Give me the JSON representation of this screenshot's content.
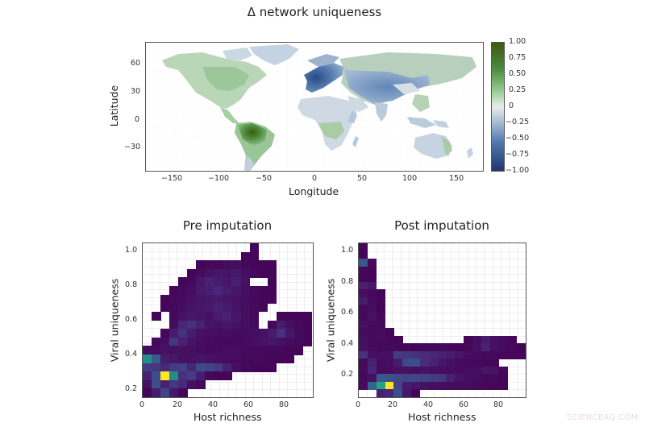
{
  "chart_data": [
    {
      "type": "heatmap",
      "subtype": "world map raster",
      "title": "Δ network uniqueness",
      "xlabel": "Longitude",
      "ylabel": "Latitude",
      "xlim": [
        -180,
        180
      ],
      "ylim": [
        -58,
        84
      ],
      "xticks": [
        -150,
        -100,
        -50,
        0,
        50,
        100,
        150
      ],
      "yticks": [
        -30,
        0,
        30,
        60
      ],
      "colorbar": {
        "range": [
          -1.0,
          1.0
        ],
        "ticks": [
          "1.00",
          "0.75",
          "0.50",
          "0.25",
          "0",
          "−0.25",
          "−0.50",
          "−0.75",
          "−1.00"
        ],
        "colormap": "diverging blue-white-green",
        "colors": {
          "low": "#1f1f5a",
          "mid_low": "#4f78ad",
          "zero": "#e8eaee",
          "mid_high": "#5fa35a",
          "high": "#3d5a10"
        }
      },
      "regions": [
        {
          "name": "Amazon basin",
          "approx_value": 0.9
        },
        {
          "name": "Central America / northern South America",
          "approx_value": 0.6
        },
        {
          "name": "North America (Canada/US)",
          "approx_value": 0.3
        },
        {
          "name": "Central Africa",
          "approx_value": 0.3
        },
        {
          "name": "Eastern Australia",
          "approx_value": 0.35
        },
        {
          "name": "Europe / Mediterranean",
          "approx_value": -0.7
        },
        {
          "name": "Central Asia / Himalaya",
          "approx_value": -0.5
        },
        {
          "name": "Siberia",
          "approx_value": 0.2
        },
        {
          "name": "Greenland",
          "approx_value": -0.2
        },
        {
          "name": "Sahara / North Africa",
          "approx_value": -0.15
        },
        {
          "name": "Southeast Asia",
          "approx_value": -0.2
        },
        {
          "name": "Australia interior",
          "approx_value": -0.15
        },
        {
          "name": "Southern South America",
          "approx_value": -0.15
        }
      ]
    },
    {
      "type": "heatmap",
      "subtype": "2D histogram",
      "title": "Pre imputation",
      "xlabel": "Host richness",
      "ylabel": "Viral uniqueness",
      "xlim": [
        0,
        95
      ],
      "ylim": [
        0.15,
        1.05
      ],
      "xticks": [
        0,
        20,
        40,
        60,
        80
      ],
      "yticks": [
        "0.2",
        "0.4",
        "0.6",
        "0.8",
        "1.0"
      ],
      "bin_width_x": 5,
      "bin_height_y": 0.05,
      "rows_top_to_bottom": 18,
      "cols": 19,
      "colormap": "viridis",
      "note": "grid values are relative density 0-1; -1 = empty",
      "grid": [
        [
          -1,
          -1,
          -1,
          -1,
          -1,
          -1,
          -1,
          -1,
          -1,
          -1,
          -1,
          -1,
          0.02,
          -1,
          -1,
          -1,
          -1,
          -1,
          -1
        ],
        [
          -1,
          -1,
          -1,
          -1,
          -1,
          -1,
          -1,
          -1,
          -1,
          -1,
          -1,
          0.02,
          0.02,
          -1,
          -1,
          -1,
          -1,
          -1,
          -1
        ],
        [
          -1,
          -1,
          -1,
          -1,
          -1,
          -1,
          0.02,
          0.03,
          0.03,
          0.04,
          0.05,
          0.03,
          0.02,
          0.02,
          0.02,
          -1,
          -1,
          -1,
          -1
        ],
        [
          -1,
          -1,
          -1,
          -1,
          -1,
          0.02,
          0.04,
          0.06,
          0.08,
          0.07,
          0.09,
          0.05,
          0.03,
          0.02,
          0.02,
          -1,
          -1,
          -1,
          -1
        ],
        [
          -1,
          -1,
          -1,
          -1,
          0.02,
          0.03,
          0.08,
          0.12,
          0.1,
          0.08,
          0.11,
          0.06,
          -1,
          -1,
          0.02,
          -1,
          -1,
          -1,
          -1
        ],
        [
          -1,
          -1,
          -1,
          0.02,
          0.03,
          0.05,
          0.09,
          0.11,
          0.14,
          0.1,
          0.08,
          0.05,
          0.03,
          0.02,
          0.02,
          -1,
          -1,
          -1,
          -1
        ],
        [
          -1,
          -1,
          0.02,
          0.03,
          0.04,
          0.06,
          0.07,
          0.08,
          0.09,
          0.07,
          0.06,
          0.04,
          0.03,
          0.02,
          0.02,
          -1,
          -1,
          -1,
          -1
        ],
        [
          -1,
          -1,
          0.02,
          0.03,
          0.05,
          0.07,
          0.08,
          0.09,
          0.12,
          0.1,
          0.07,
          0.05,
          0.03,
          0.02,
          -1,
          -1,
          -1,
          -1,
          -1
        ],
        [
          -1,
          0.02,
          -1,
          0.03,
          0.06,
          0.08,
          0.07,
          0.06,
          0.1,
          0.12,
          0.08,
          0.05,
          0.03,
          -1,
          -1,
          0.02,
          0.02,
          0.02,
          0.02
        ],
        [
          -1,
          -1,
          -1,
          0.04,
          0.14,
          0.18,
          0.12,
          0.07,
          0.06,
          0.08,
          0.07,
          0.05,
          0.03,
          -1,
          0.03,
          0.1,
          0.05,
          0.03,
          0.02
        ],
        [
          -1,
          -1,
          0.03,
          0.1,
          0.18,
          0.1,
          0.06,
          0.05,
          0.04,
          0.05,
          0.04,
          0.04,
          0.05,
          0.06,
          0.1,
          0.18,
          0.08,
          0.04,
          0.02
        ],
        [
          -1,
          0.03,
          0.05,
          0.2,
          0.12,
          0.07,
          0.05,
          0.04,
          0.03,
          0.03,
          0.03,
          0.04,
          0.05,
          0.07,
          0.08,
          0.06,
          0.04,
          0.03,
          0.02
        ],
        [
          0.05,
          0.04,
          0.06,
          0.05,
          0.06,
          0.05,
          0.04,
          0.03,
          0.04,
          0.05,
          0.05,
          0.04,
          0.03,
          0.03,
          0.03,
          0.03,
          0.02,
          0.02,
          -1
        ],
        [
          0.62,
          0.35,
          0.1,
          0.08,
          0.06,
          0.06,
          0.07,
          0.06,
          0.05,
          0.04,
          0.04,
          0.03,
          0.03,
          0.03,
          0.02,
          0.02,
          0.02,
          -1,
          -1
        ],
        [
          0.22,
          0.2,
          0.14,
          0.22,
          0.24,
          0.14,
          0.28,
          0.25,
          0.22,
          0.12,
          0.05,
          0.03,
          0.02,
          0.02,
          0.02,
          -1,
          -1,
          -1,
          -1
        ],
        [
          0.12,
          0.3,
          1.0,
          0.6,
          0.18,
          0.22,
          0.1,
          0.03,
          0.02,
          0.02,
          -1,
          -1,
          -1,
          -1,
          -1,
          -1,
          -1,
          -1,
          -1
        ],
        [
          0.06,
          0.3,
          0.12,
          0.2,
          0.15,
          0.05,
          0.03,
          -1,
          -1,
          -1,
          -1,
          -1,
          -1,
          -1,
          -1,
          -1,
          -1,
          -1,
          -1
        ],
        [
          0.02,
          0.1,
          0.25,
          0.08,
          0.02,
          -1,
          -1,
          -1,
          -1,
          -1,
          -1,
          -1,
          -1,
          -1,
          -1,
          -1,
          -1,
          -1,
          -1
        ]
      ]
    },
    {
      "type": "heatmap",
      "subtype": "2D histogram",
      "title": "Post imputation",
      "xlabel": "Host richness",
      "ylabel": "Viral uniqueness",
      "xlim": [
        0,
        95
      ],
      "ylim": [
        0.05,
        1.05
      ],
      "xticks": [
        0,
        20,
        40,
        60,
        80
      ],
      "yticks": [
        "0.2",
        "0.4",
        "0.6",
        "0.8",
        "1.0"
      ],
      "bin_width_x": 5,
      "bin_height_y": 0.05,
      "rows_top_to_bottom": 20,
      "cols": 19,
      "colormap": "viridis",
      "note": "grid values are relative density 0-1; -1 = empty",
      "grid": [
        [
          0.02,
          -1,
          -1,
          -1,
          -1,
          -1,
          -1,
          -1,
          -1,
          -1,
          -1,
          -1,
          -1,
          -1,
          -1,
          -1,
          -1,
          -1,
          -1
        ],
        [
          0.02,
          -1,
          -1,
          -1,
          -1,
          -1,
          -1,
          -1,
          -1,
          -1,
          -1,
          -1,
          -1,
          -1,
          -1,
          -1,
          -1,
          -1,
          -1
        ],
        [
          0.35,
          0.03,
          -1,
          -1,
          -1,
          -1,
          -1,
          -1,
          -1,
          -1,
          -1,
          -1,
          -1,
          -1,
          -1,
          -1,
          -1,
          -1,
          -1
        ],
        [
          0.03,
          0.02,
          -1,
          -1,
          -1,
          -1,
          -1,
          -1,
          -1,
          -1,
          -1,
          -1,
          -1,
          -1,
          -1,
          -1,
          -1,
          -1,
          -1
        ],
        [
          0.02,
          0.02,
          -1,
          -1,
          -1,
          -1,
          -1,
          -1,
          -1,
          -1,
          -1,
          -1,
          -1,
          -1,
          -1,
          -1,
          -1,
          -1,
          -1
        ],
        [
          0.12,
          0.08,
          -1,
          -1,
          -1,
          -1,
          -1,
          -1,
          -1,
          -1,
          -1,
          -1,
          -1,
          -1,
          -1,
          -1,
          -1,
          -1,
          -1
        ],
        [
          0.05,
          0.03,
          0.02,
          -1,
          -1,
          -1,
          -1,
          -1,
          -1,
          -1,
          -1,
          -1,
          -1,
          -1,
          -1,
          -1,
          -1,
          -1,
          -1
        ],
        [
          0.1,
          0.04,
          0.02,
          -1,
          -1,
          -1,
          -1,
          -1,
          -1,
          -1,
          -1,
          -1,
          -1,
          -1,
          -1,
          -1,
          -1,
          -1,
          -1
        ],
        [
          0.04,
          0.05,
          0.02,
          -1,
          -1,
          -1,
          -1,
          -1,
          -1,
          -1,
          -1,
          -1,
          -1,
          -1,
          -1,
          -1,
          -1,
          -1,
          -1
        ],
        [
          0.03,
          0.06,
          0.03,
          -1,
          -1,
          -1,
          -1,
          -1,
          -1,
          -1,
          -1,
          -1,
          -1,
          -1,
          -1,
          -1,
          -1,
          -1,
          -1
        ],
        [
          0.06,
          0.04,
          0.03,
          -1,
          -1,
          -1,
          -1,
          -1,
          -1,
          -1,
          -1,
          -1,
          -1,
          -1,
          -1,
          -1,
          -1,
          -1,
          -1
        ],
        [
          0.04,
          0.03,
          0.04,
          0.02,
          -1,
          -1,
          -1,
          -1,
          -1,
          -1,
          -1,
          -1,
          -1,
          -1,
          -1,
          -1,
          -1,
          -1,
          -1
        ],
        [
          0.05,
          0.03,
          0.04,
          0.03,
          0.02,
          -1,
          -1,
          -1,
          -1,
          -1,
          -1,
          -1,
          0.02,
          0.05,
          0.1,
          0.06,
          0.04,
          0.02,
          -1
        ],
        [
          0.06,
          0.04,
          0.03,
          0.03,
          0.03,
          0.03,
          0.02,
          0.03,
          0.03,
          0.03,
          0.02,
          0.02,
          0.03,
          0.06,
          0.12,
          0.06,
          0.04,
          0.03,
          0.02
        ],
        [
          0.18,
          0.06,
          0.05,
          0.06,
          0.22,
          0.2,
          0.18,
          0.16,
          0.14,
          0.12,
          0.1,
          0.08,
          0.05,
          0.04,
          0.03,
          0.03,
          0.02,
          0.02,
          0.02
        ],
        [
          0.03,
          0.12,
          0.04,
          0.05,
          0.1,
          0.28,
          0.3,
          0.16,
          0.12,
          0.08,
          0.06,
          0.04,
          0.03,
          0.03,
          0.02,
          0.02,
          -1,
          -1,
          -1
        ],
        [
          0.04,
          0.14,
          0.04,
          0.04,
          0.06,
          0.06,
          0.05,
          0.06,
          0.05,
          0.05,
          0.04,
          0.04,
          0.04,
          0.05,
          0.08,
          0.07,
          0.03,
          -1,
          -1
        ],
        [
          0.03,
          0.06,
          0.35,
          0.32,
          0.28,
          0.25,
          0.26,
          0.24,
          0.22,
          0.2,
          0.12,
          0.07,
          0.05,
          0.04,
          0.03,
          0.03,
          0.02,
          -1,
          -1
        ],
        [
          0.04,
          0.42,
          0.72,
          1.0,
          0.25,
          0.1,
          0.08,
          0.06,
          0.05,
          0.05,
          0.04,
          0.04,
          0.04,
          0.03,
          0.03,
          0.02,
          0.02,
          -1,
          -1
        ],
        [
          -1,
          -1,
          0.12,
          0.14,
          0.3,
          0.08,
          0.02,
          -1,
          -1,
          -1,
          -1,
          -1,
          -1,
          -1,
          -1,
          -1,
          -1,
          -1,
          -1
        ]
      ]
    }
  ],
  "map": {
    "title": "Δ network uniqueness",
    "xlabel": "Longitude",
    "ylabel": "Latitude",
    "xticks": [
      "−150",
      "−100",
      "−50",
      "0",
      "50",
      "100",
      "150"
    ],
    "yticks": [
      "60",
      "30",
      "0",
      "−30"
    ],
    "colorbar_ticks": [
      "1.00",
      "0.75",
      "0.50",
      "0.25",
      "0",
      "−0.25",
      "−0.50",
      "−0.75",
      "−1.00"
    ]
  },
  "pre": {
    "title": "Pre imputation",
    "xlabel": "Host richness",
    "ylabel": "Viral uniqueness",
    "xticks": [
      "0",
      "20",
      "40",
      "60",
      "80"
    ],
    "yticks": [
      "1.0",
      "0.8",
      "0.6",
      "0.4",
      "0.2"
    ]
  },
  "post": {
    "title": "Post imputation",
    "xlabel": "Host richness",
    "ylabel": "Viral uniqueness",
    "xticks": [
      "0",
      "20",
      "40",
      "60",
      "80"
    ],
    "yticks": [
      "1.0",
      "0.8",
      "0.6",
      "0.4",
      "0.2"
    ]
  },
  "watermark": "SCIENCEAQ.COM"
}
